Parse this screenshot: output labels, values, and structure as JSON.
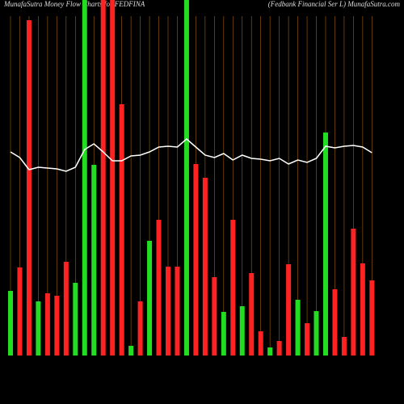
{
  "chart_data": {
    "type": "bar",
    "title": "MunafaSutra  Money Flow  Charts for FEDFINA",
    "subtitle": "(Fedbank Financial Ser L) MunafaSutra.com",
    "categories": [
      null,
      null,
      null,
      null,
      null,
      null,
      null,
      null,
      null,
      null,
      null,
      null,
      null,
      null,
      null,
      null,
      null,
      null,
      null,
      null,
      null,
      null,
      null,
      null,
      null,
      null,
      null,
      null,
      null,
      null,
      null,
      null,
      null,
      null,
      null,
      null,
      null,
      null,
      null,
      null
    ],
    "values": [
      80,
      109,
      415,
      67,
      77,
      74,
      116,
      90,
      460,
      236,
      460,
      460,
      311,
      12,
      67,
      142,
      168,
      110,
      110,
      460,
      237,
      220,
      97,
      54,
      168,
      61,
      102,
      30,
      10,
      18,
      113,
      69,
      40,
      55,
      276,
      82,
      23,
      157,
      114,
      93
    ],
    "colors": [
      "#22dd22",
      "#ff2222",
      "#ff2222",
      "#22dd22",
      "#ff2222",
      "#ff2222",
      "#ff2222",
      "#22dd22",
      "#22dd22",
      "#22dd22",
      "#ff2222",
      "#ff2222",
      "#ff2222",
      "#22dd22",
      "#ff2222",
      "#22dd22",
      "#ff2222",
      "#ff2222",
      "#ff2222",
      "#22dd22",
      "#ff2222",
      "#ff2222",
      "#ff2222",
      "#22dd22",
      "#ff2222",
      "#22dd22",
      "#ff2222",
      "#ff2222",
      "#22dd22",
      "#ff2222",
      "#ff2222",
      "#22dd22",
      "#ff2222",
      "#22dd22",
      "#22dd22",
      "#ff2222",
      "#ff2222",
      "#ff2222",
      "#ff2222",
      "#ff2222"
    ],
    "line": [
      252,
      245,
      230,
      233,
      232,
      231,
      228,
      233,
      255,
      262,
      252,
      241,
      241,
      247,
      248,
      252,
      258,
      259,
      258,
      268,
      258,
      248,
      245,
      250,
      242,
      248,
      244,
      243,
      241,
      244,
      237,
      242,
      239,
      244,
      259,
      257,
      259,
      260,
      258,
      251
    ],
    "line_color": "#ffffff",
    "grid_color": "#a0600a",
    "ylim": [
      0,
      440
    ]
  }
}
